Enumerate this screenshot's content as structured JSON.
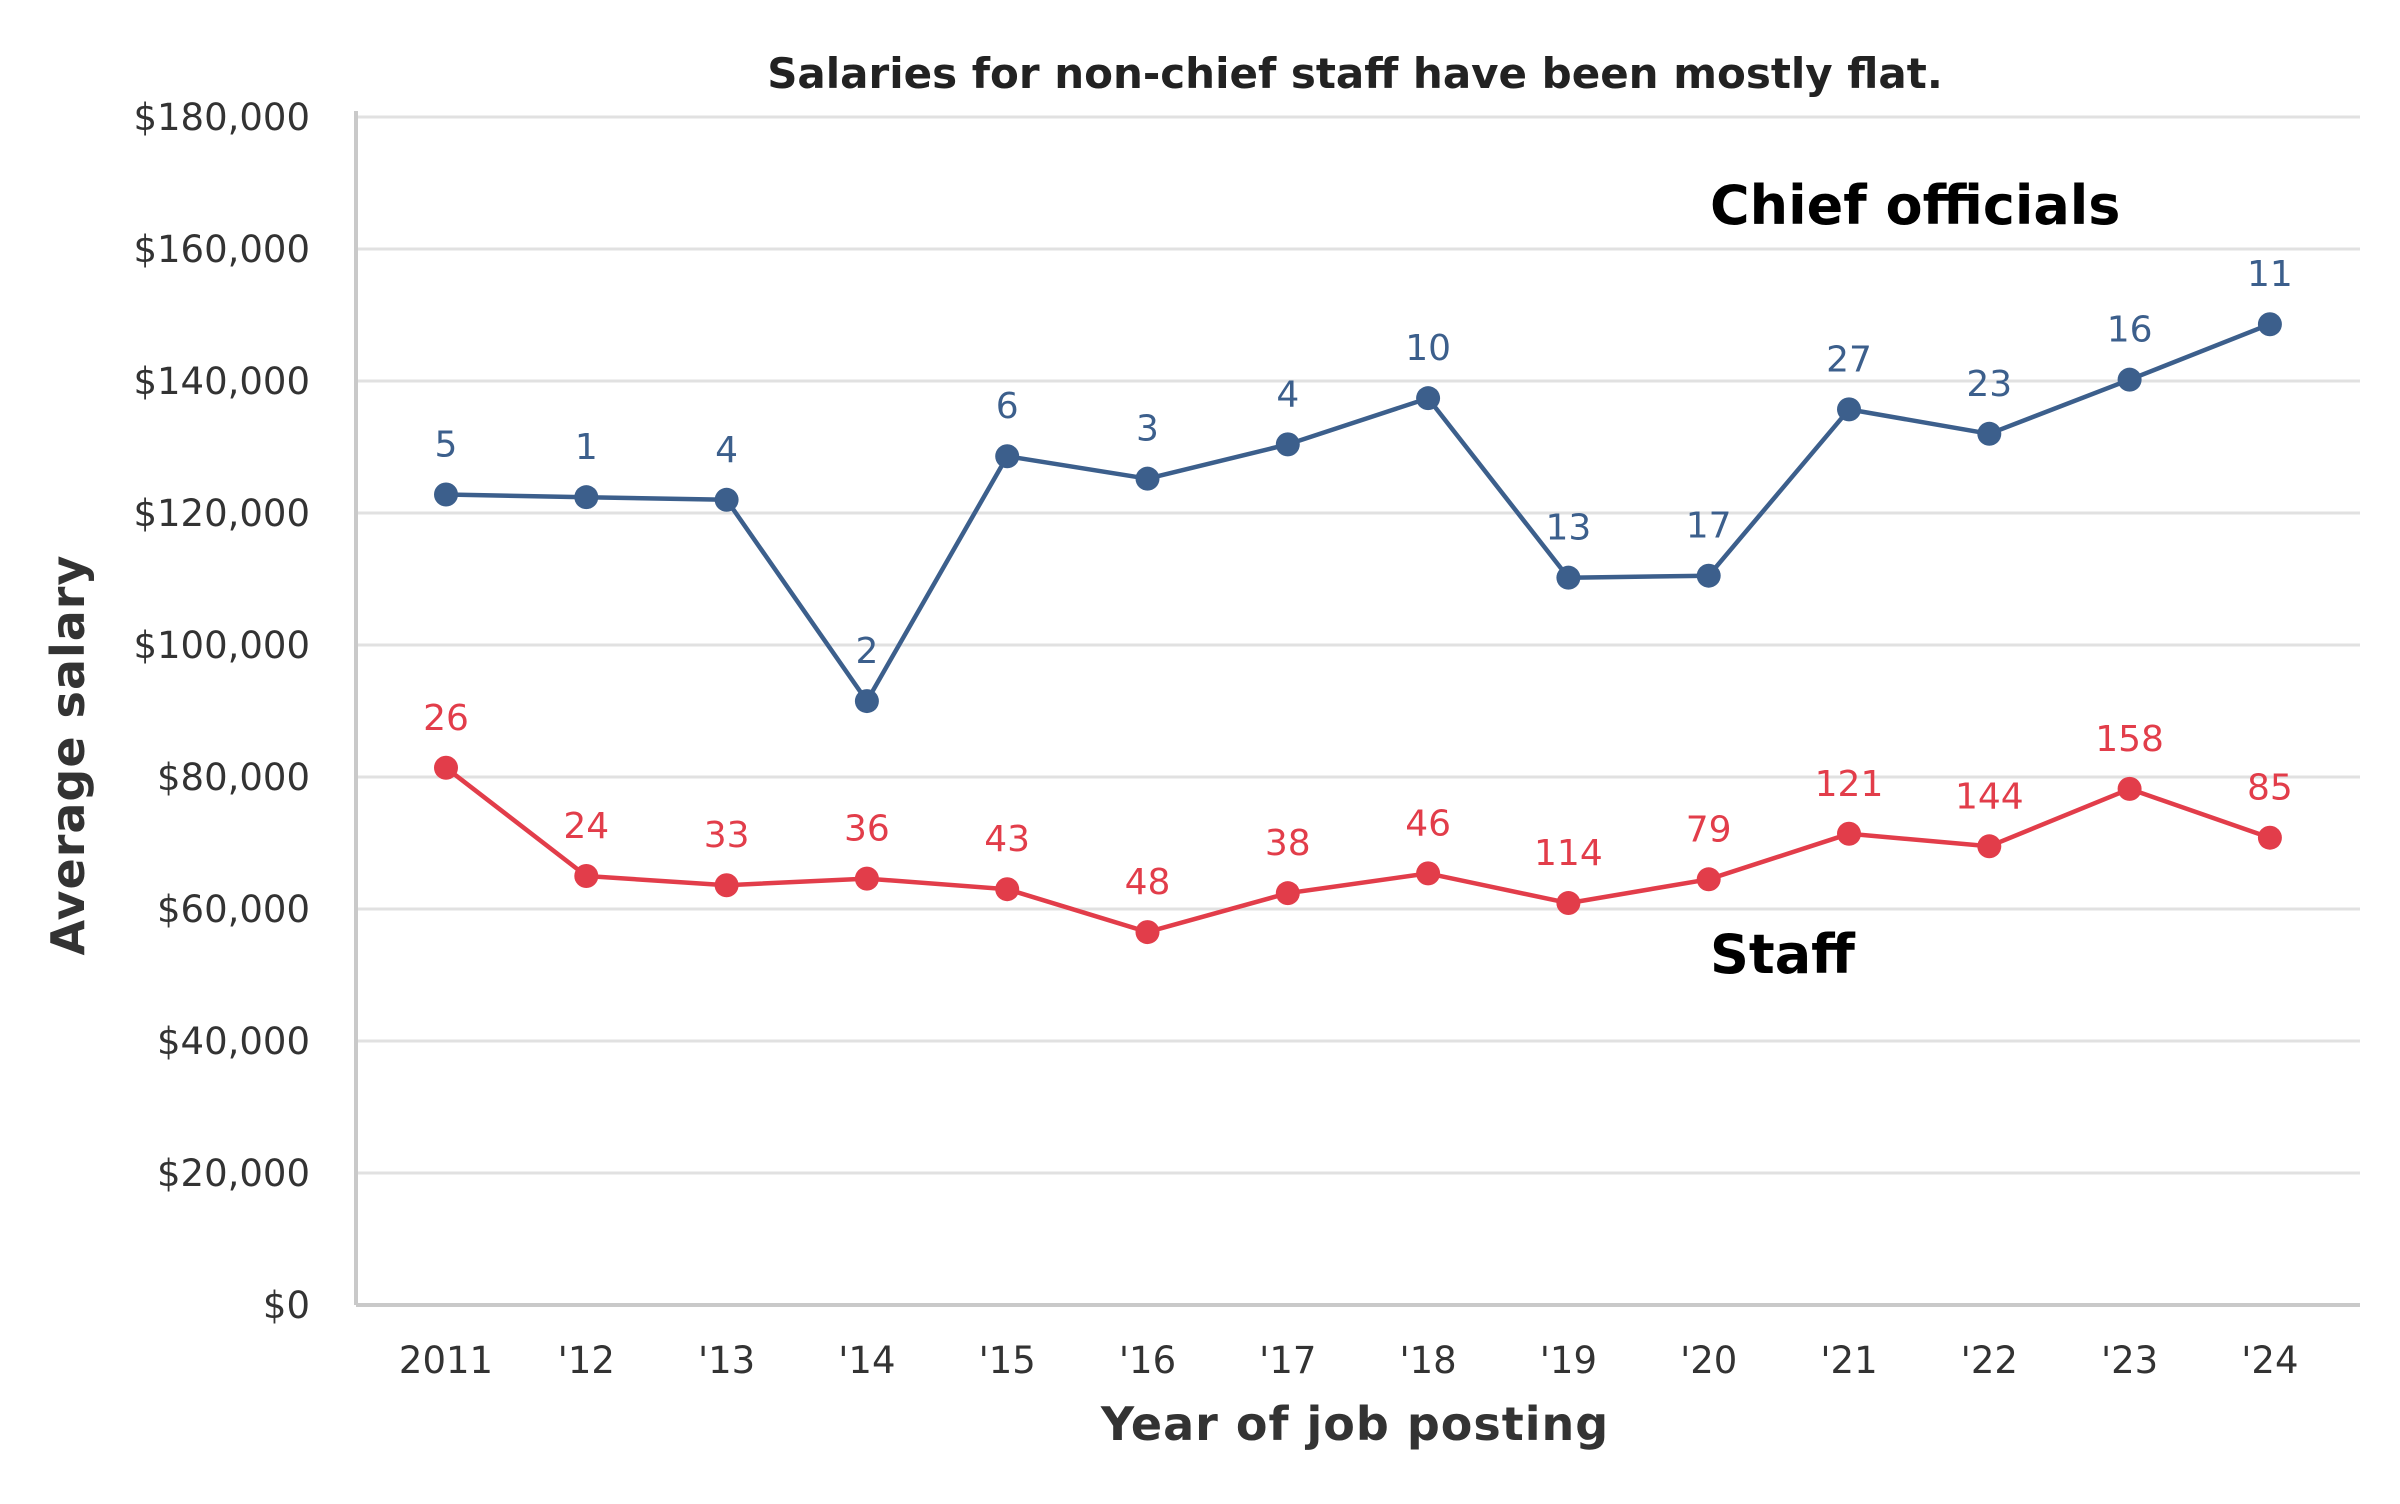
{
  "chart_data": {
    "type": "line",
    "title": "Salaries for non-chief staff have been mostly flat.",
    "xlabel": "Year of job posting",
    "ylabel": "Average salary",
    "categories": [
      "2011",
      "'12",
      "'13",
      "'14",
      "'15",
      "'16",
      "'17",
      "'18",
      "'19",
      "'20",
      "'21",
      "'22",
      "'23",
      "'24"
    ],
    "ylim": [
      0,
      180000
    ],
    "yticks": [
      0,
      20000,
      40000,
      60000,
      80000,
      100000,
      120000,
      140000,
      160000,
      180000
    ],
    "ytick_labels": [
      "$0",
      "$20,000",
      "$40,000",
      "$60,000",
      "$80,000",
      "$100,000",
      "$120,000",
      "$140,000",
      "$160,000",
      "$180,000"
    ],
    "grid": true,
    "series": [
      {
        "name": "Chief officials",
        "color": "#3c5f8c",
        "values": [
          122800,
          122400,
          122000,
          91500,
          128600,
          125200,
          130400,
          137400,
          110200,
          110500,
          135700,
          132000,
          140200,
          148600
        ],
        "labels": [
          "5",
          "1",
          "4",
          "2",
          "6",
          "3",
          "4",
          "10",
          "13",
          "17",
          "27",
          "23",
          "16",
          "11"
        ]
      },
      {
        "name": "Staff",
        "color": "#e23d4a",
        "values": [
          81400,
          65000,
          63600,
          64600,
          63000,
          56500,
          62400,
          65400,
          60900,
          64500,
          71400,
          69500,
          78200,
          70800
        ],
        "labels": [
          "26",
          "24",
          "33",
          "36",
          "43",
          "48",
          "38",
          "46",
          "114",
          "79",
          "121",
          "144",
          "158",
          "85"
        ]
      }
    ]
  }
}
